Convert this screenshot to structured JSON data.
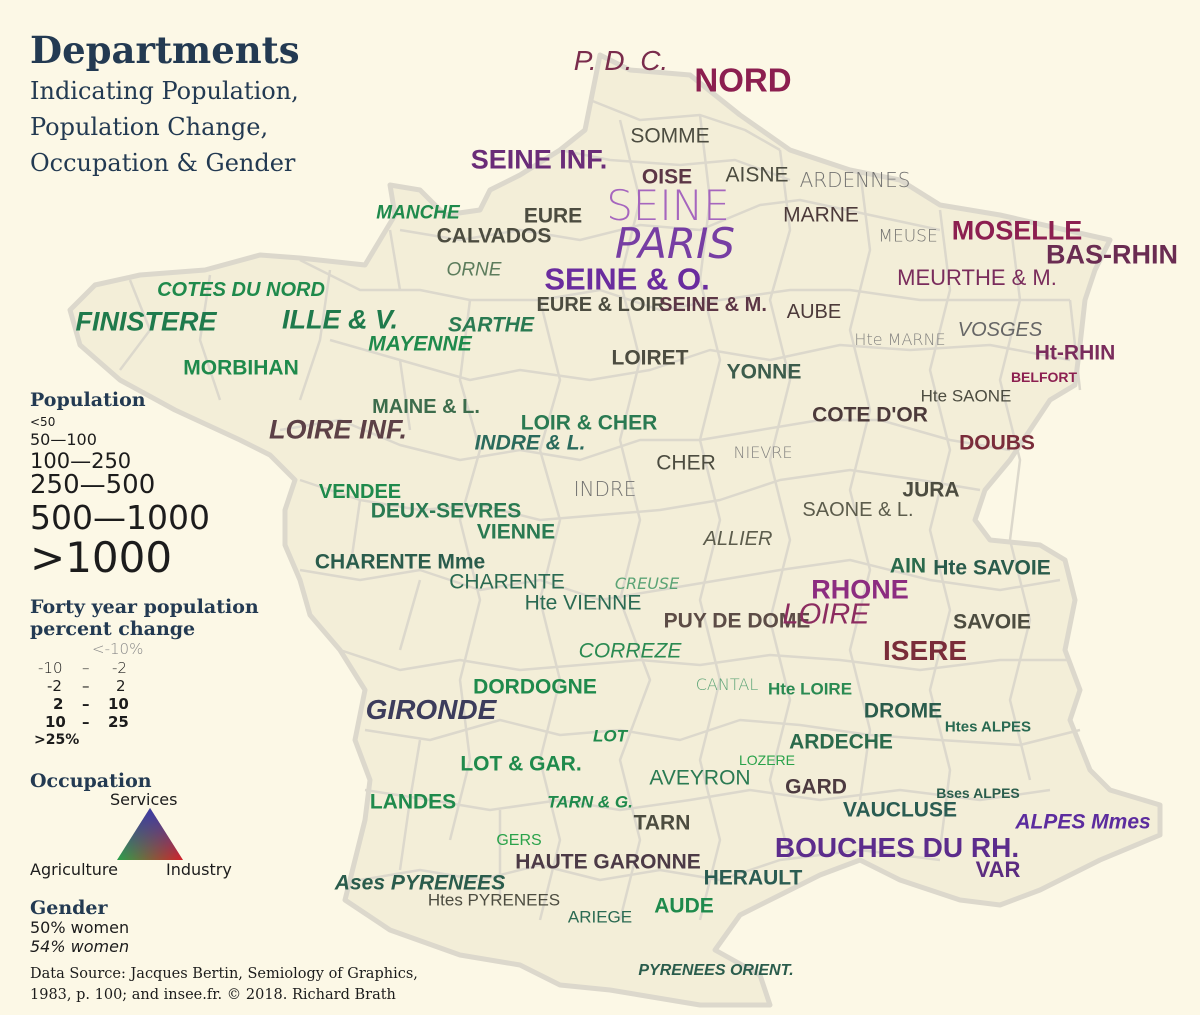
{
  "title": "Departments",
  "subtitle_lines": [
    "Indicating Population,",
    "Population Change,",
    "Occupation & Gender"
  ],
  "legend": {
    "population": {
      "heading": "Population",
      "items": [
        "<50",
        "50—100",
        "100—250",
        "250—500",
        "500—1000",
        ">1000"
      ]
    },
    "change": {
      "heading_lines": [
        "Forty year population",
        "percent change"
      ],
      "items": [
        {
          "a": "<-10%",
          "b": "",
          "c": ""
        },
        {
          "a": "-10",
          "b": "–",
          "c": "-2"
        },
        {
          "a": "-2",
          "b": "–",
          "c": "2"
        },
        {
          "a": "2",
          "b": "–",
          "c": "10"
        },
        {
          "a": "10",
          "b": "–",
          "c": "25"
        },
        {
          "a": ">25%",
          "b": "",
          "c": ""
        }
      ]
    },
    "occupation": {
      "heading": "Occupation",
      "services": "Services",
      "agriculture": "Agriculture",
      "industry": "Industry",
      "colors": {
        "services": "#3a3aa8",
        "agriculture": "#2aa24a",
        "industry": "#d4202a"
      }
    },
    "gender": {
      "heading": "Gender",
      "normal": "50% women",
      "italic": "54% women"
    }
  },
  "source_lines": [
    "Data Source: Jacques Bertin, Semiology of Graphics,",
    "1983, p. 100; and insee.fr. © 2018. Richard Brath"
  ],
  "departments": [
    {
      "name": "P. D. C.",
      "size": 28,
      "weight": 400,
      "italic": true,
      "color": "#7a2c4c"
    },
    {
      "name": "NORD",
      "size": 33,
      "weight": 700,
      "italic": false,
      "color": "#8c1f50"
    },
    {
      "name": "SOMME",
      "size": 21,
      "weight": 400,
      "italic": false,
      "color": "#4c4c40"
    },
    {
      "name": "SEINE INF.",
      "size": 27,
      "weight": 700,
      "italic": false,
      "color": "#6a2c78"
    },
    {
      "name": "OISE",
      "size": 21,
      "weight": 700,
      "italic": false,
      "color": "#5c3646"
    },
    {
      "name": "AISNE",
      "size": 21,
      "weight": 400,
      "italic": false,
      "color": "#4c4c40"
    },
    {
      "name": "ARDENNES",
      "size": 20,
      "weight": 300,
      "italic": false,
      "color": "#666666"
    },
    {
      "name": "SEINE",
      "size": 42,
      "weight": 300,
      "italic": false,
      "color": "#9e58bc"
    },
    {
      "name": "PARIS",
      "size": 42,
      "weight": 300,
      "italic": true,
      "color": "#6a2c9e"
    },
    {
      "name": "MANCHE",
      "size": 19,
      "weight": 700,
      "italic": true,
      "color": "#1f8a4c"
    },
    {
      "name": "EURE",
      "size": 21,
      "weight": 700,
      "italic": false,
      "color": "#4c4c40"
    },
    {
      "name": "CALVADOS",
      "size": 21,
      "weight": 700,
      "italic": false,
      "color": "#4c4c40"
    },
    {
      "name": "MARNE",
      "size": 21,
      "weight": 400,
      "italic": false,
      "color": "#4c3a3a"
    },
    {
      "name": "MEUSE",
      "size": 17,
      "weight": 300,
      "italic": false,
      "color": "#666666"
    },
    {
      "name": "MOSELLE",
      "size": 27,
      "weight": 700,
      "italic": false,
      "color": "#8c1f50"
    },
    {
      "name": "BAS-RHIN",
      "size": 27,
      "weight": 700,
      "italic": false,
      "color": "#6a2c52"
    },
    {
      "name": "ORNE",
      "size": 19,
      "weight": 400,
      "italic": true,
      "color": "#5c7c5c"
    },
    {
      "name": "SEINE & O.",
      "size": 31,
      "weight": 700,
      "italic": false,
      "color": "#6a2c9e"
    },
    {
      "name": "MEURTHE & M.",
      "size": 22,
      "weight": 400,
      "italic": false,
      "color": "#7a2c5c"
    },
    {
      "name": "COTES DU NORD",
      "size": 20,
      "weight": 700,
      "italic": true,
      "color": "#1f8a4c"
    },
    {
      "name": "EURE & LOIR",
      "size": 20,
      "weight": 700,
      "italic": false,
      "color": "#4c4c40"
    },
    {
      "name": "SEINE & M.",
      "size": 20,
      "weight": 700,
      "italic": false,
      "color": "#5c3646"
    },
    {
      "name": "AUBE",
      "size": 20,
      "weight": 400,
      "italic": false,
      "color": "#4c3a3a"
    },
    {
      "name": "FINISTERE",
      "size": 27,
      "weight": 700,
      "italic": true,
      "color": "#1f7a4c"
    },
    {
      "name": "ILLE & V.",
      "size": 27,
      "weight": 700,
      "italic": true,
      "color": "#1f7a4c"
    },
    {
      "name": "SARTHE",
      "size": 21,
      "weight": 700,
      "italic": true,
      "color": "#2a7a52"
    },
    {
      "name": "VOSGES",
      "size": 20,
      "weight": 400,
      "italic": true,
      "color": "#666666"
    },
    {
      "name": "Hte MARNE",
      "size": 16,
      "weight": 300,
      "italic": false,
      "color": "#777777"
    },
    {
      "name": "Ht-RHIN",
      "size": 21,
      "weight": 700,
      "italic": false,
      "color": "#7a2c5c"
    },
    {
      "name": "MAYENNE",
      "size": 21,
      "weight": 700,
      "italic": true,
      "color": "#1f8a4c"
    },
    {
      "name": "MORBIHAN",
      "size": 21,
      "weight": 700,
      "italic": false,
      "color": "#1f8a4c"
    },
    {
      "name": "LOIRET",
      "size": 21,
      "weight": 700,
      "italic": false,
      "color": "#4c4c40"
    },
    {
      "name": "YONNE",
      "size": 21,
      "weight": 700,
      "italic": false,
      "color": "#3c5c4c"
    },
    {
      "name": "BELFORT",
      "size": 14,
      "weight": 700,
      "italic": false,
      "color": "#8c1f50"
    },
    {
      "name": "Hte SAONE",
      "size": 17,
      "weight": 400,
      "italic": false,
      "color": "#4c4c40"
    },
    {
      "name": "MAINE & L.",
      "size": 20,
      "weight": 700,
      "italic": false,
      "color": "#3c6c4c"
    },
    {
      "name": "LOIRE INF.",
      "size": 27,
      "weight": 700,
      "italic": true,
      "color": "#5c4046"
    },
    {
      "name": "LOIR & CHER",
      "size": 21,
      "weight": 700,
      "italic": false,
      "color": "#2a7a52"
    },
    {
      "name": "INDRE & L.",
      "size": 21,
      "weight": 700,
      "italic": true,
      "color": "#2a6a5c"
    },
    {
      "name": "COTE D'OR",
      "size": 21,
      "weight": 700,
      "italic": false,
      "color": "#4c3a3a"
    },
    {
      "name": "DOUBS",
      "size": 21,
      "weight": 700,
      "italic": false,
      "color": "#7a2c3a"
    },
    {
      "name": "CHER",
      "size": 21,
      "weight": 400,
      "italic": false,
      "color": "#4c4c40"
    },
    {
      "name": "NIEVRE",
      "size": 16,
      "weight": 300,
      "italic": false,
      "color": "#777777"
    },
    {
      "name": "INDRE",
      "size": 20,
      "weight": 300,
      "italic": false,
      "color": "#666666"
    },
    {
      "name": "JURA",
      "size": 21,
      "weight": 700,
      "italic": false,
      "color": "#4c4c40"
    },
    {
      "name": "VENDEE",
      "size": 20,
      "weight": 700,
      "italic": false,
      "color": "#1f8a4c"
    },
    {
      "name": "DEUX-SEVRES",
      "size": 21,
      "weight": 700,
      "italic": false,
      "color": "#2a7a52"
    },
    {
      "name": "VIENNE",
      "size": 21,
      "weight": 700,
      "italic": false,
      "color": "#2a7a52"
    },
    {
      "name": "SAONE & L.",
      "size": 20,
      "weight": 400,
      "italic": false,
      "color": "#5c5c4c"
    },
    {
      "name": "ALLIER",
      "size": 20,
      "weight": 400,
      "italic": true,
      "color": "#5c5c4c"
    },
    {
      "name": "CHARENTE Mme",
      "size": 21,
      "weight": 700,
      "italic": false,
      "color": "#2a5c4c"
    },
    {
      "name": "AIN",
      "size": 21,
      "weight": 700,
      "italic": false,
      "color": "#2a6a4c"
    },
    {
      "name": "Hte SAVOIE",
      "size": 21,
      "weight": 700,
      "italic": false,
      "color": "#2a5c4c"
    },
    {
      "name": "CHARENTE",
      "size": 21,
      "weight": 400,
      "italic": false,
      "color": "#2a6a52"
    },
    {
      "name": "CREUSE",
      "size": 16,
      "weight": 300,
      "italic": true,
      "color": "#4c9c6c"
    },
    {
      "name": "RHONE",
      "size": 27,
      "weight": 700,
      "italic": false,
      "color": "#8c2c80"
    },
    {
      "name": "Hte VIENNE",
      "size": 21,
      "weight": 400,
      "italic": false,
      "color": "#2a6a52"
    },
    {
      "name": "PUY DE DOME",
      "size": 21,
      "weight": 700,
      "italic": false,
      "color": "#5c4c46"
    },
    {
      "name": "LOIRE",
      "size": 29,
      "weight": 400,
      "italic": true,
      "color": "#8c2c60"
    },
    {
      "name": "SAVOIE",
      "size": 21,
      "weight": 700,
      "italic": false,
      "color": "#4c4c40"
    },
    {
      "name": "CORREZE",
      "size": 21,
      "weight": 400,
      "italic": true,
      "color": "#2a8a52"
    },
    {
      "name": "ISERE",
      "size": 28,
      "weight": 700,
      "italic": false,
      "color": "#7a2c3a"
    },
    {
      "name": "DORDOGNE",
      "size": 21,
      "weight": 700,
      "italic": false,
      "color": "#1f8a4c"
    },
    {
      "name": "CANTAL",
      "size": 16,
      "weight": 300,
      "italic": false,
      "color": "#4c9c6c"
    },
    {
      "name": "Hte LOIRE",
      "size": 17,
      "weight": 700,
      "italic": false,
      "color": "#2a8a52"
    },
    {
      "name": "GIRONDE",
      "size": 28,
      "weight": 700,
      "italic": true,
      "color": "#3c3c5c"
    },
    {
      "name": "DROME",
      "size": 21,
      "weight": 700,
      "italic": false,
      "color": "#2a5c4c"
    },
    {
      "name": "Htes ALPES",
      "size": 15,
      "weight": 700,
      "italic": false,
      "color": "#2a6a52"
    },
    {
      "name": "LOT",
      "size": 17,
      "weight": 700,
      "italic": true,
      "color": "#1f8a4c"
    },
    {
      "name": "ARDECHE",
      "size": 21,
      "weight": 700,
      "italic": false,
      "color": "#2a6a4c"
    },
    {
      "name": "LOZERE",
      "size": 14,
      "weight": 400,
      "italic": false,
      "color": "#2aa24a"
    },
    {
      "name": "LOT & GAR.",
      "size": 21,
      "weight": 700,
      "italic": false,
      "color": "#1f8a4c"
    },
    {
      "name": "AVEYRON",
      "size": 21,
      "weight": 400,
      "italic": false,
      "color": "#2a7a52"
    },
    {
      "name": "GARD",
      "size": 21,
      "weight": 700,
      "italic": false,
      "color": "#4c3a40"
    },
    {
      "name": "Bses ALPES",
      "size": 14,
      "weight": 700,
      "italic": false,
      "color": "#2a5c4c"
    },
    {
      "name": "LANDES",
      "size": 21,
      "weight": 700,
      "italic": false,
      "color": "#1f8a4c"
    },
    {
      "name": "TARN & G.",
      "size": 17,
      "weight": 700,
      "italic": true,
      "color": "#1f8a4c"
    },
    {
      "name": "VAUCLUSE",
      "size": 21,
      "weight": 700,
      "italic": false,
      "color": "#2a5c52"
    },
    {
      "name": "ALPES Mmes",
      "size": 21,
      "weight": 700,
      "italic": true,
      "color": "#5c2c9e"
    },
    {
      "name": "TARN",
      "size": 21,
      "weight": 700,
      "italic": false,
      "color": "#4c4c40"
    },
    {
      "name": "GERS",
      "size": 16,
      "weight": 400,
      "italic": false,
      "color": "#2aa24a"
    },
    {
      "name": "BOUCHES DU RH.",
      "size": 28,
      "weight": 700,
      "italic": false,
      "color": "#5c2c8c"
    },
    {
      "name": "HAUTE GARONNE",
      "size": 21,
      "weight": 700,
      "italic": false,
      "color": "#4c3a46"
    },
    {
      "name": "HERAULT",
      "size": 21,
      "weight": 700,
      "italic": false,
      "color": "#2a5c52"
    },
    {
      "name": "VAR",
      "size": 22,
      "weight": 700,
      "italic": false,
      "color": "#5c2c80"
    },
    {
      "name": "Ases PYRENEES",
      "size": 21,
      "weight": 700,
      "italic": true,
      "color": "#2a5c4c"
    },
    {
      "name": "Htes PYRENEES",
      "size": 17,
      "weight": 400,
      "italic": false,
      "color": "#4c4c40"
    },
    {
      "name": "ARIEGE",
      "size": 17,
      "weight": 400,
      "italic": false,
      "color": "#2a6a52"
    },
    {
      "name": "AUDE",
      "size": 21,
      "weight": 700,
      "italic": false,
      "color": "#1f8a4c"
    },
    {
      "name": "PYRENEES ORIENT.",
      "size": 16,
      "weight": 700,
      "italic": true,
      "color": "#2a5c4c"
    }
  ]
}
